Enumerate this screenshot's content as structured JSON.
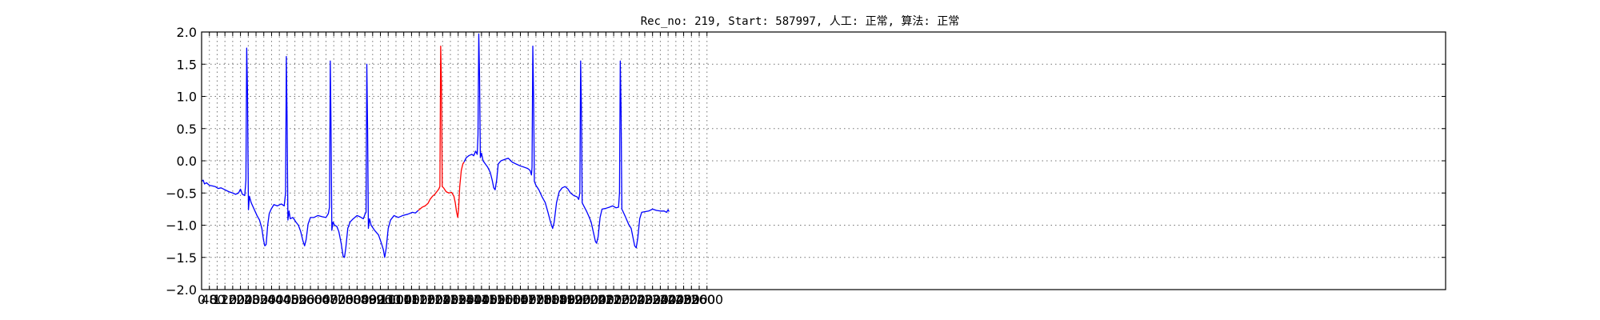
{
  "chart_data": {
    "type": "line",
    "title": "Rec_no: 219, Start: 587997, 人工: 正常, 算法: 正常",
    "xlabel": "",
    "ylabel": "",
    "xlim": [
      0,
      6400
    ],
    "ylim": [
      -2.0,
      2.0
    ],
    "grid": true,
    "y_ticks": [
      "2.0",
      "1.5",
      "1.0",
      "0.5",
      "0.0",
      "−0.5",
      "−1.0",
      "−1.5",
      "−2.0"
    ],
    "y_tick_values": [
      2.0,
      1.5,
      1.0,
      0.5,
      0.0,
      -0.5,
      -1.0,
      -1.5,
      -2.0
    ],
    "x_ticks": [
      0,
      40,
      80,
      120,
      160,
      200,
      240,
      280,
      320,
      360,
      400,
      440,
      480,
      520,
      560,
      600,
      640,
      680,
      720,
      760,
      800,
      840,
      880,
      920,
      960,
      1000,
      1040,
      1080,
      1120,
      1160,
      1200,
      1240,
      1280,
      1320,
      1360,
      1400,
      1440,
      1480,
      1520,
      1560,
      1600,
      1640,
      1680,
      1720,
      1760,
      1800,
      1840,
      1880,
      1920,
      1960,
      2000,
      2040,
      2080,
      2120,
      2160,
      2200,
      2240,
      2280,
      2320,
      2360,
      2400,
      2440,
      2480,
      2520,
      2560,
      2600
    ],
    "x_tick_labels": [
      "0",
      "40",
      "80",
      "120",
      "160",
      "200",
      "240",
      "280",
      "320",
      "360",
      "400",
      "440",
      "480",
      "520",
      "560",
      "600",
      "640",
      "680",
      "720",
      "760",
      "800",
      "840",
      "880",
      "920",
      "960",
      "1000",
      "1040",
      "1080",
      "1120",
      "1160",
      "1200",
      "1240",
      "1280",
      "1320",
      "1360",
      "1400",
      "1440",
      "1480",
      "1520",
      "1560",
      "1600",
      "1640",
      "1680",
      "1720",
      "1760",
      "1800",
      "1840",
      "1880",
      "1920",
      "1960",
      "2000",
      "2040",
      "2080",
      "2120",
      "2160",
      "2200",
      "2240",
      "2280",
      "2320",
      "2360",
      "2400",
      "2440",
      "2480",
      "2520",
      "2560",
      "2600"
    ],
    "series": [
      {
        "color": "#0000ff",
        "points": [
          [
            0,
            -0.32
          ],
          [
            8,
            -0.3
          ],
          [
            15,
            -0.36
          ],
          [
            25,
            -0.34
          ],
          [
            40,
            -0.38
          ],
          [
            55,
            -0.39
          ],
          [
            70,
            -0.4
          ],
          [
            85,
            -0.43
          ],
          [
            100,
            -0.42
          ],
          [
            120,
            -0.45
          ],
          [
            140,
            -0.48
          ],
          [
            160,
            -0.5
          ],
          [
            175,
            -0.52
          ],
          [
            190,
            -0.5
          ],
          [
            200,
            -0.44
          ],
          [
            210,
            -0.52
          ],
          [
            222,
            -0.54
          ],
          [
            228,
            -0.3
          ],
          [
            232,
            1.75
          ],
          [
            236,
            1.1
          ],
          [
            241,
            -0.76
          ],
          [
            246,
            -0.55
          ],
          [
            255,
            -0.65
          ],
          [
            270,
            -0.75
          ],
          [
            285,
            -0.85
          ],
          [
            298,
            -0.92
          ],
          [
            310,
            -1.05
          ],
          [
            318,
            -1.22
          ],
          [
            325,
            -1.32
          ],
          [
            332,
            -1.3
          ],
          [
            340,
            -1.0
          ],
          [
            348,
            -0.82
          ],
          [
            358,
            -0.75
          ],
          [
            372,
            -0.68
          ],
          [
            390,
            -0.7
          ],
          [
            410,
            -0.67
          ],
          [
            425,
            -0.7
          ],
          [
            432,
            -0.5
          ],
          [
            436,
            1.62
          ],
          [
            440,
            0.6
          ],
          [
            444,
            -0.92
          ],
          [
            450,
            -0.78
          ],
          [
            456,
            -0.9
          ],
          [
            470,
            -0.88
          ],
          [
            485,
            -0.95
          ],
          [
            498,
            -1.0
          ],
          [
            510,
            -1.1
          ],
          [
            522,
            -1.25
          ],
          [
            530,
            -1.32
          ],
          [
            538,
            -1.22
          ],
          [
            548,
            -0.98
          ],
          [
            560,
            -0.88
          ],
          [
            578,
            -0.88
          ],
          [
            598,
            -0.85
          ],
          [
            622,
            -0.87
          ],
          [
            640,
            -0.88
          ],
          [
            652,
            -0.82
          ],
          [
            658,
            -0.72
          ],
          [
            662,
            1.55
          ],
          [
            666,
            0.5
          ],
          [
            670,
            -1.08
          ],
          [
            676,
            -0.95
          ],
          [
            684,
            -1.0
          ],
          [
            696,
            -1.02
          ],
          [
            706,
            -1.1
          ],
          [
            718,
            -1.28
          ],
          [
            728,
            -1.48
          ],
          [
            735,
            -1.5
          ],
          [
            742,
            -1.35
          ],
          [
            752,
            -1.05
          ],
          [
            764,
            -0.95
          ],
          [
            780,
            -0.9
          ],
          [
            800,
            -0.85
          ],
          [
            815,
            -0.87
          ],
          [
            832,
            -0.9
          ],
          [
            842,
            -0.82
          ],
          [
            846,
            -0.8
          ],
          [
            850,
            1.5
          ],
          [
            854,
            0.5
          ],
          [
            858,
            -1.05
          ],
          [
            864,
            -0.9
          ],
          [
            872,
            -1.0
          ],
          [
            890,
            -1.08
          ],
          [
            910,
            -1.15
          ],
          [
            925,
            -1.28
          ],
          [
            935,
            -1.38
          ],
          [
            942,
            -1.5
          ],
          [
            950,
            -1.35
          ],
          [
            960,
            -1.05
          ],
          [
            972,
            -0.92
          ],
          [
            990,
            -0.85
          ],
          [
            1012,
            -0.88
          ],
          [
            1035,
            -0.85
          ],
          [
            1060,
            -0.83
          ],
          [
            1085,
            -0.8
          ],
          [
            1100,
            -0.81
          ],
          [
            1115,
            -0.77
          ]
        ]
      },
      {
        "color": "#ff0000",
        "points": [
          [
            1115,
            -0.77
          ],
          [
            1135,
            -0.72
          ],
          [
            1150,
            -0.7
          ],
          [
            1165,
            -0.66
          ],
          [
            1175,
            -0.6
          ],
          [
            1188,
            -0.55
          ],
          [
            1200,
            -0.52
          ],
          [
            1210,
            -0.48
          ],
          [
            1220,
            -0.44
          ],
          [
            1226,
            -0.4
          ],
          [
            1230,
            1.78
          ],
          [
            1234,
            1.2
          ],
          [
            1238,
            -0.4
          ],
          [
            1245,
            -0.42
          ],
          [
            1258,
            -0.48
          ],
          [
            1272,
            -0.5
          ],
          [
            1286,
            -0.49
          ],
          [
            1298,
            -0.55
          ],
          [
            1305,
            -0.65
          ],
          [
            1312,
            -0.8
          ],
          [
            1318,
            -0.88
          ],
          [
            1322,
            -0.75
          ],
          [
            1328,
            -0.4
          ],
          [
            1336,
            -0.15
          ],
          [
            1344,
            -0.05
          ],
          [
            1350,
            -0.02
          ]
        ]
      },
      {
        "color": "#0000ff",
        "points": [
          [
            1350,
            -0.02
          ],
          [
            1362,
            0.05
          ],
          [
            1375,
            0.08
          ],
          [
            1390,
            0.1
          ],
          [
            1400,
            0.08
          ],
          [
            1410,
            0.15
          ],
          [
            1418,
            0.1
          ],
          [
            1422,
            0.4
          ],
          [
            1426,
            1.97
          ],
          [
            1430,
            1.3
          ],
          [
            1434,
            0.05
          ],
          [
            1440,
            0.12
          ],
          [
            1448,
            0.0
          ],
          [
            1460,
            -0.05
          ],
          [
            1472,
            -0.1
          ],
          [
            1485,
            -0.18
          ],
          [
            1495,
            -0.3
          ],
          [
            1503,
            -0.42
          ],
          [
            1510,
            -0.45
          ],
          [
            1518,
            -0.3
          ],
          [
            1526,
            -0.05
          ],
          [
            1540,
            0.0
          ],
          [
            1558,
            0.02
          ],
          [
            1578,
            0.04
          ],
          [
            1598,
            -0.02
          ],
          [
            1618,
            -0.05
          ],
          [
            1640,
            -0.08
          ],
          [
            1660,
            -0.1
          ],
          [
            1678,
            -0.12
          ],
          [
            1690,
            -0.15
          ],
          [
            1697,
            -0.22
          ],
          [
            1700,
            -0.1
          ],
          [
            1704,
            1.78
          ],
          [
            1708,
            1.0
          ],
          [
            1712,
            -0.32
          ],
          [
            1720,
            -0.38
          ],
          [
            1735,
            -0.45
          ],
          [
            1750,
            -0.55
          ],
          [
            1768,
            -0.65
          ],
          [
            1782,
            -0.8
          ],
          [
            1795,
            -0.95
          ],
          [
            1806,
            -1.05
          ],
          [
            1814,
            -0.95
          ],
          [
            1826,
            -0.65
          ],
          [
            1840,
            -0.48
          ],
          [
            1855,
            -0.42
          ],
          [
            1870,
            -0.4
          ],
          [
            1885,
            -0.44
          ],
          [
            1898,
            -0.5
          ],
          [
            1915,
            -0.54
          ],
          [
            1932,
            -0.56
          ],
          [
            1940,
            -0.6
          ],
          [
            1946,
            -0.5
          ],
          [
            1950,
            1.55
          ],
          [
            1954,
            0.8
          ],
          [
            1958,
            -0.65
          ],
          [
            1966,
            -0.7
          ],
          [
            1980,
            -0.78
          ],
          [
            1992,
            -0.86
          ],
          [
            2004,
            -0.95
          ],
          [
            2015,
            -1.1
          ],
          [
            2026,
            -1.25
          ],
          [
            2032,
            -1.28
          ],
          [
            2040,
            -1.18
          ],
          [
            2050,
            -0.88
          ],
          [
            2060,
            -0.75
          ],
          [
            2078,
            -0.74
          ],
          [
            2098,
            -0.72
          ],
          [
            2115,
            -0.7
          ],
          [
            2132,
            -0.73
          ],
          [
            2145,
            -0.72
          ],
          [
            2150,
            -0.5
          ],
          [
            2154,
            1.55
          ],
          [
            2158,
            0.8
          ],
          [
            2162,
            -0.75
          ],
          [
            2170,
            -0.8
          ],
          [
            2182,
            -0.88
          ],
          [
            2196,
            -0.98
          ],
          [
            2210,
            -1.05
          ],
          [
            2220,
            -1.2
          ],
          [
            2228,
            -1.32
          ],
          [
            2236,
            -1.35
          ],
          [
            2244,
            -1.2
          ],
          [
            2254,
            -0.9
          ],
          [
            2264,
            -0.8
          ],
          [
            2280,
            -0.79
          ],
          [
            2300,
            -0.78
          ],
          [
            2320,
            -0.75
          ],
          [
            2340,
            -0.77
          ],
          [
            2360,
            -0.78
          ],
          [
            2380,
            -0.78
          ],
          [
            2392,
            -0.8
          ],
          [
            2400,
            -0.76
          ],
          [
            2405,
            -0.79
          ]
        ]
      }
    ]
  }
}
